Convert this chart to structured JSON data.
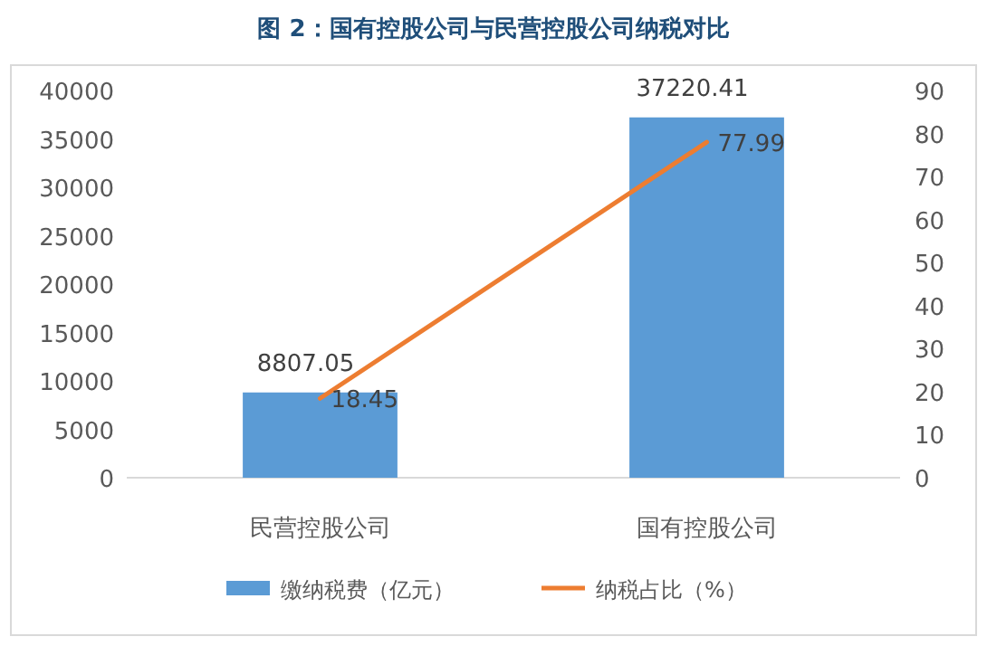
{
  "chart_data": {
    "type": "bar",
    "title": "图 2：国有控股公司与民营控股公司纳税对比",
    "categories": [
      "民营控股公司",
      "国有控股公司"
    ],
    "series": [
      {
        "name": "缴纳税费（亿元）",
        "color": "#5b9bd5",
        "values": [
          8807.05,
          37220.41
        ]
      },
      {
        "name": "纳税占比（%）",
        "type": "line",
        "axis": "y2",
        "color": "#ed7d31",
        "values": [
          18.45,
          77.99
        ]
      }
    ],
    "ylim": [
      0,
      40000
    ],
    "yticks": [
      0,
      5000,
      10000,
      15000,
      20000,
      25000,
      30000,
      35000,
      40000
    ],
    "y2lim": [
      0,
      90
    ],
    "y2ticks": [
      0,
      10,
      20,
      30,
      40,
      50,
      60,
      70,
      80,
      90
    ],
    "data_labels": true,
    "legend": "bottom"
  }
}
